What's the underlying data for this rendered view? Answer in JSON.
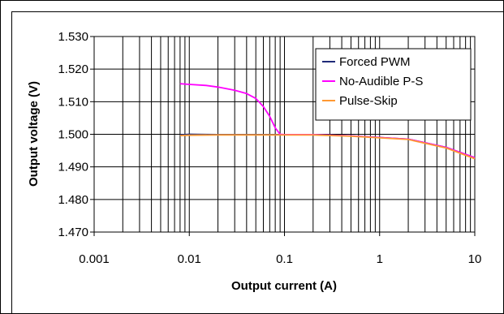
{
  "chart_data": {
    "type": "line",
    "title": "",
    "xlabel": "Output current (A)",
    "ylabel": "Output voltage (V)",
    "x_scale": "log",
    "xlim": [
      0.001,
      10
    ],
    "ylim": [
      1.47,
      1.53
    ],
    "x_ticks": [
      0.001,
      0.01,
      0.1,
      1,
      10
    ],
    "x_tick_labels": [
      "0.001",
      "0.01",
      "0.1",
      "1",
      "10"
    ],
    "y_ticks": [
      1.47,
      1.48,
      1.49,
      1.5,
      1.51,
      1.52,
      1.53
    ],
    "y_tick_labels": [
      "1.470",
      "1.480",
      "1.490",
      "1.500",
      "1.510",
      "1.520",
      "1.530"
    ],
    "grid": true,
    "legend_position": "top-right",
    "series": [
      {
        "name": "Forced PWM",
        "color": "#1f2a78",
        "points": [
          [
            0.008,
            1.4998
          ],
          [
            0.01,
            1.5
          ],
          [
            0.02,
            1.4999
          ],
          [
            0.05,
            1.4999
          ],
          [
            0.1,
            1.4999
          ],
          [
            0.2,
            1.4999
          ],
          [
            0.5,
            1.4995
          ],
          [
            1,
            1.499
          ],
          [
            2,
            1.4985
          ],
          [
            5,
            1.496
          ],
          [
            10,
            1.4928
          ]
        ]
      },
      {
        "name": "No-Audible P-S",
        "color": "#ff00ff",
        "points": [
          [
            0.008,
            1.5155
          ],
          [
            0.01,
            1.5153
          ],
          [
            0.015,
            1.515
          ],
          [
            0.02,
            1.5145
          ],
          [
            0.03,
            1.5135
          ],
          [
            0.04,
            1.5125
          ],
          [
            0.05,
            1.511
          ],
          [
            0.06,
            1.5085
          ],
          [
            0.07,
            1.5055
          ],
          [
            0.08,
            1.502
          ],
          [
            0.09,
            1.5
          ],
          [
            0.1,
            1.4999
          ],
          [
            0.2,
            1.4999
          ],
          [
            0.5,
            1.4995
          ],
          [
            1,
            1.499
          ],
          [
            2,
            1.4985
          ],
          [
            5,
            1.496
          ],
          [
            10,
            1.4928
          ]
        ]
      },
      {
        "name": "Pulse-Skip",
        "color": "#ff9933",
        "points": [
          [
            0.008,
            1.4996
          ],
          [
            0.01,
            1.4997
          ],
          [
            0.02,
            1.4998
          ],
          [
            0.05,
            1.4998
          ],
          [
            0.1,
            1.4998
          ],
          [
            0.2,
            1.4998
          ],
          [
            0.5,
            1.4994
          ],
          [
            1,
            1.4989
          ],
          [
            2,
            1.4984
          ],
          [
            5,
            1.4958
          ],
          [
            10,
            1.4925
          ]
        ]
      }
    ]
  }
}
